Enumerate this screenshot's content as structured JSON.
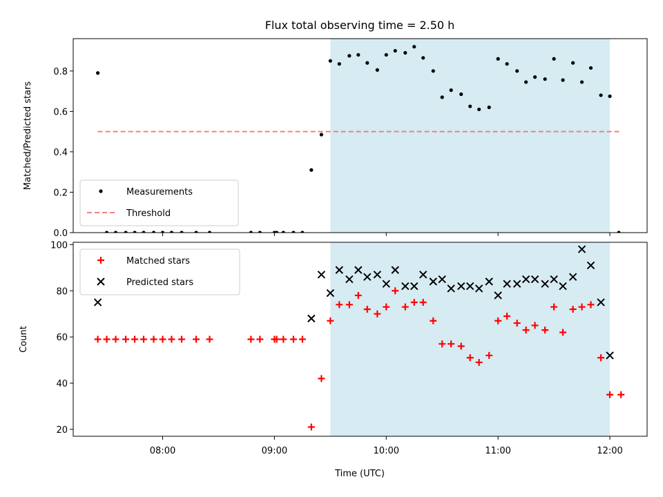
{
  "chart_data": {
    "title": "Flux total observing time = 2.50 h",
    "xlabel": "Time (UTC)",
    "x_unit": "hours UTC (decimal)",
    "xlim": [
      "07:12",
      "12:20"
    ],
    "x_ticks": [
      {
        "value": 8.0,
        "label": "08:00"
      },
      {
        "value": 9.0,
        "label": "09:00"
      },
      {
        "value": 10.0,
        "label": "10:00"
      },
      {
        "value": 11.0,
        "label": "11:00"
      },
      {
        "value": 12.0,
        "label": "12:00"
      }
    ],
    "highlight_span": {
      "x0": 9.5,
      "x1": 12.0,
      "color": "#add8e6"
    },
    "panels": [
      {
        "type": "scatter",
        "ylabel": "Matched/Predicted stars",
        "ylim": [
          0,
          0.96
        ],
        "y_ticks": [
          {
            "value": 0.0,
            "label": "0.0"
          },
          {
            "value": 0.2,
            "label": "0.2"
          },
          {
            "value": 0.4,
            "label": "0.4"
          },
          {
            "value": 0.6,
            "label": "0.6"
          },
          {
            "value": 0.8,
            "label": "0.8"
          }
        ],
        "legend_position": "lower-left",
        "series": [
          {
            "name": "Measurements",
            "kind": "scatter",
            "marker": "dot",
            "color": "#000000",
            "points": [
              [
                7.42,
                0.79
              ],
              [
                7.5,
                0.0
              ],
              [
                7.58,
                0.0
              ],
              [
                7.67,
                0.0
              ],
              [
                7.75,
                0.0
              ],
              [
                7.83,
                0.0
              ],
              [
                7.92,
                0.0
              ],
              [
                8.0,
                0.0
              ],
              [
                8.08,
                0.0
              ],
              [
                8.17,
                0.0
              ],
              [
                8.3,
                0.0
              ],
              [
                8.42,
                0.0
              ],
              [
                8.79,
                0.0
              ],
              [
                8.87,
                0.0
              ],
              [
                9.0,
                0.0
              ],
              [
                9.02,
                0.0
              ],
              [
                9.08,
                0.0
              ],
              [
                9.17,
                0.0
              ],
              [
                9.25,
                0.0
              ],
              [
                9.33,
                0.31
              ],
              [
                9.42,
                0.485
              ],
              [
                9.5,
                0.85
              ],
              [
                9.58,
                0.835
              ],
              [
                9.67,
                0.875
              ],
              [
                9.75,
                0.88
              ],
              [
                9.83,
                0.84
              ],
              [
                9.92,
                0.805
              ],
              [
                10.0,
                0.88
              ],
              [
                10.08,
                0.9
              ],
              [
                10.17,
                0.89
              ],
              [
                10.25,
                0.92
              ],
              [
                10.33,
                0.865
              ],
              [
                10.42,
                0.8
              ],
              [
                10.5,
                0.67
              ],
              [
                10.58,
                0.705
              ],
              [
                10.67,
                0.685
              ],
              [
                10.75,
                0.625
              ],
              [
                10.83,
                0.61
              ],
              [
                10.92,
                0.62
              ],
              [
                11.0,
                0.86
              ],
              [
                11.08,
                0.835
              ],
              [
                11.17,
                0.8
              ],
              [
                11.25,
                0.745
              ],
              [
                11.33,
                0.77
              ],
              [
                11.42,
                0.76
              ],
              [
                11.5,
                0.86
              ],
              [
                11.58,
                0.755
              ],
              [
                11.67,
                0.84
              ],
              [
                11.75,
                0.745
              ],
              [
                11.83,
                0.815
              ],
              [
                11.92,
                0.68
              ],
              [
                12.0,
                0.675
              ],
              [
                12.08,
                0.0
              ]
            ]
          },
          {
            "name": "Threshold",
            "kind": "line",
            "dash": true,
            "color": "#f08080",
            "points": [
              [
                7.42,
                0.5
              ],
              [
                12.1,
                0.5
              ]
            ]
          }
        ]
      },
      {
        "type": "scatter",
        "ylabel": "Count",
        "ylim": [
          17,
          101
        ],
        "y_ticks": [
          {
            "value": 20,
            "label": "20"
          },
          {
            "value": 40,
            "label": "40"
          },
          {
            "value": 60,
            "label": "60"
          },
          {
            "value": 80,
            "label": "80"
          },
          {
            "value": 100,
            "label": "100"
          }
        ],
        "legend_position": "top-left",
        "series": [
          {
            "name": "Matched stars",
            "kind": "scatter",
            "marker": "plus",
            "color": "#ff0000",
            "points": [
              [
                7.42,
                59
              ],
              [
                7.5,
                59
              ],
              [
                7.58,
                59
              ],
              [
                7.67,
                59
              ],
              [
                7.75,
                59
              ],
              [
                7.83,
                59
              ],
              [
                7.92,
                59
              ],
              [
                8.0,
                59
              ],
              [
                8.08,
                59
              ],
              [
                8.17,
                59
              ],
              [
                8.3,
                59
              ],
              [
                8.42,
                59
              ],
              [
                8.79,
                59
              ],
              [
                8.87,
                59
              ],
              [
                9.0,
                59
              ],
              [
                9.02,
                59
              ],
              [
                9.08,
                59
              ],
              [
                9.17,
                59
              ],
              [
                9.25,
                59
              ],
              [
                9.33,
                21
              ],
              [
                9.42,
                42
              ],
              [
                9.5,
                67
              ],
              [
                9.58,
                74
              ],
              [
                9.67,
                74
              ],
              [
                9.75,
                78
              ],
              [
                9.83,
                72
              ],
              [
                9.92,
                70
              ],
              [
                10.0,
                73
              ],
              [
                10.08,
                80
              ],
              [
                10.17,
                73
              ],
              [
                10.25,
                75
              ],
              [
                10.33,
                75
              ],
              [
                10.42,
                67
              ],
              [
                10.5,
                57
              ],
              [
                10.58,
                57
              ],
              [
                10.67,
                56
              ],
              [
                10.75,
                51
              ],
              [
                10.83,
                49
              ],
              [
                10.92,
                52
              ],
              [
                11.0,
                67
              ],
              [
                11.08,
                69
              ],
              [
                11.17,
                66
              ],
              [
                11.25,
                63
              ],
              [
                11.33,
                65
              ],
              [
                11.42,
                63
              ],
              [
                11.5,
                73
              ],
              [
                11.58,
                62
              ],
              [
                11.67,
                72
              ],
              [
                11.75,
                73
              ],
              [
                11.83,
                74
              ],
              [
                11.92,
                51
              ],
              [
                12.0,
                35
              ],
              [
                12.1,
                35
              ]
            ]
          },
          {
            "name": "Predicted stars",
            "kind": "scatter",
            "marker": "x",
            "color": "#000000",
            "points": [
              [
                7.42,
                75
              ],
              [
                9.33,
                68
              ],
              [
                9.42,
                87
              ],
              [
                9.5,
                79
              ],
              [
                9.58,
                89
              ],
              [
                9.67,
                85
              ],
              [
                9.75,
                89
              ],
              [
                9.83,
                86
              ],
              [
                9.92,
                87
              ],
              [
                10.0,
                83
              ],
              [
                10.08,
                89
              ],
              [
                10.17,
                82
              ],
              [
                10.25,
                82
              ],
              [
                10.33,
                87
              ],
              [
                10.42,
                84
              ],
              [
                10.5,
                85
              ],
              [
                10.58,
                81
              ],
              [
                10.67,
                82
              ],
              [
                10.75,
                82
              ],
              [
                10.83,
                81
              ],
              [
                10.92,
                84
              ],
              [
                11.0,
                78
              ],
              [
                11.08,
                83
              ],
              [
                11.17,
                83
              ],
              [
                11.25,
                85
              ],
              [
                11.33,
                85
              ],
              [
                11.42,
                83
              ],
              [
                11.5,
                85
              ],
              [
                11.58,
                82
              ],
              [
                11.67,
                86
              ],
              [
                11.75,
                98
              ],
              [
                11.83,
                91
              ],
              [
                11.92,
                75
              ],
              [
                12.0,
                52
              ]
            ]
          }
        ]
      }
    ]
  }
}
